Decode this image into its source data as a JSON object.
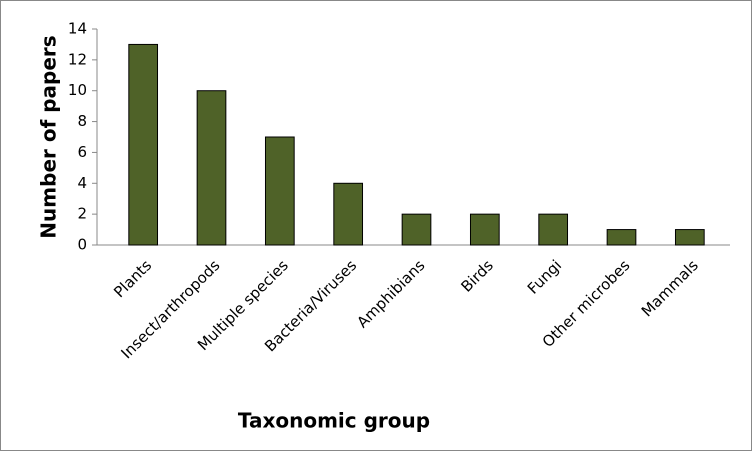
{
  "chart_data": {
    "type": "bar",
    "x_label": "Taxonomic group",
    "y_label": "Number of papers",
    "categories": [
      "Plants",
      "Insect/arthropods",
      "Multiple species",
      "Bacteria/Viruses",
      "Amphibians",
      "Birds",
      "Fungi",
      "Other microbes",
      "Mammals"
    ],
    "values": [
      13,
      10,
      7,
      4,
      2,
      2,
      2,
      1,
      1
    ],
    "color": "#4f6228",
    "ylim": [
      0,
      14
    ],
    "yticks": [
      0,
      2,
      4,
      6,
      8,
      10,
      12,
      14
    ],
    "grid": false
  }
}
